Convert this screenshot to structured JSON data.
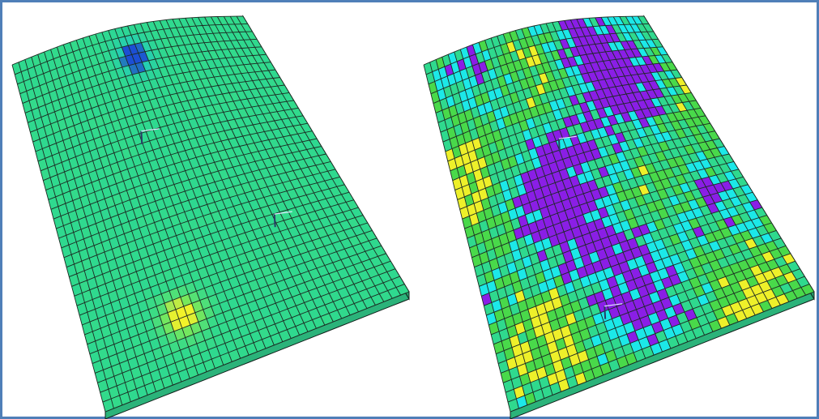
{
  "scene": {
    "panels": [
      {
        "name": "left-grid-model",
        "shading": "smooth",
        "palette": [
          "#1c4fd4",
          "#1fc7c7",
          "#2fd98e",
          "#3fe06a",
          "#a9f23a",
          "#f2f22a"
        ],
        "base_color": "#2fd98e",
        "hotspots": [
          {
            "u": 0.48,
            "v": 0.09,
            "level": -1.0
          },
          {
            "u": 0.32,
            "v": 0.83,
            "level": 1.0
          }
        ],
        "label_markers": [
          {
            "u": 0.4,
            "v": 0.3
          },
          {
            "u": 0.73,
            "v": 0.64
          }
        ]
      },
      {
        "name": "right-grid-model",
        "shading": "cell",
        "palette": [
          "#8a1ee6",
          "#1ce8e8",
          "#2fd98e",
          "#49d94a",
          "#eef02a"
        ],
        "base_color": "#49d94a",
        "label_markers": [
          {
            "u": 0.43,
            "v": 0.33
          },
          {
            "u": 0.38,
            "v": 0.82
          }
        ]
      }
    ],
    "grid": {
      "cols": 36,
      "rows": 36
    },
    "side_color": "#2bb37a",
    "border_color": "#4f7fb8"
  }
}
